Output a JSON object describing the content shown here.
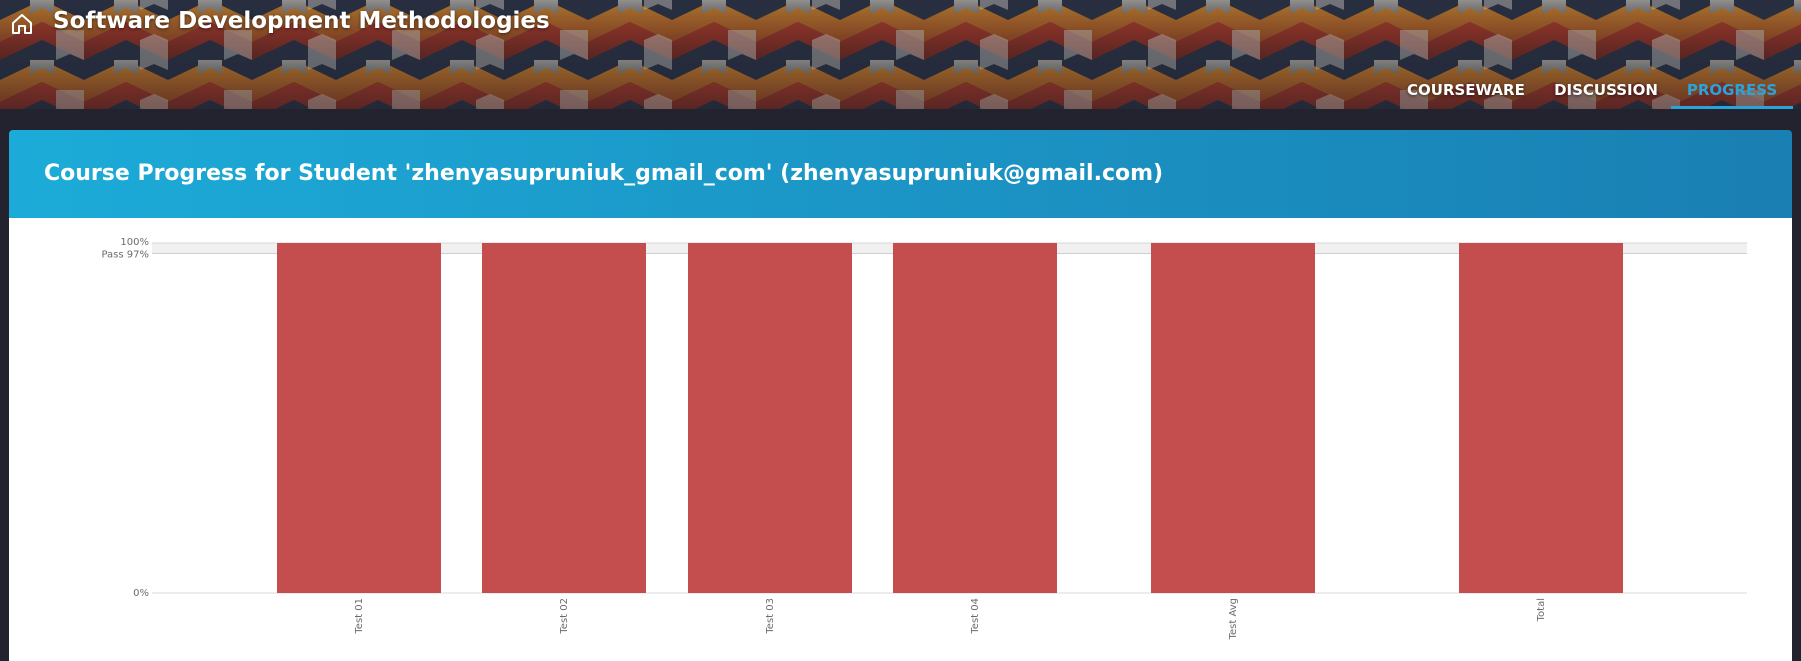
{
  "header": {
    "course_title": "Software Development Methodologies",
    "home_icon": "home-icon",
    "nav_tabs": [
      {
        "label": "COURSEWARE",
        "active": false
      },
      {
        "label": "DISCUSSION",
        "active": false
      },
      {
        "label": "PROGRESS",
        "active": true
      }
    ]
  },
  "progress": {
    "title": "Course Progress for Student 'zhenyasupruniuk_gmail_com' (zhenyasupruniuk@gmail.com)"
  },
  "chart_data": {
    "type": "bar",
    "categories": [
      "Test 01",
      "Test 02",
      "Test 03",
      "Test 04",
      "Test Avg",
      "Total"
    ],
    "values": [
      100,
      100,
      100,
      100,
      100,
      100
    ],
    "y_tick_labels": [
      "100%",
      "Pass 97%",
      "0%"
    ],
    "pass_threshold": 97,
    "ylim": [
      0,
      100
    ],
    "bar_color": "#c44e4e",
    "grid": false
  },
  "colors": {
    "accent": "#2ba3d9",
    "banner_start": "#1cabd8",
    "banner_end": "#1a7fb3"
  }
}
